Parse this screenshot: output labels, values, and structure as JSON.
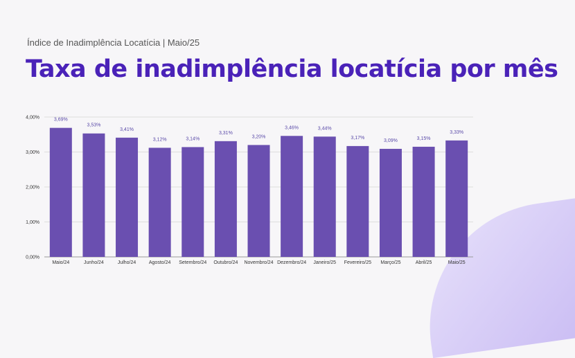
{
  "header": {
    "subtitle": "Índice de Inadimplência Locatícia | Maio/25",
    "title": "Taxa de inadimplência locatícia por mês"
  },
  "colors": {
    "bar": "#6a4fb0",
    "title": "#4a22b8",
    "grid": "#dddddd"
  },
  "chart_data": {
    "type": "bar",
    "categories": [
      "Maio/24",
      "Junho/24",
      "Julho/24",
      "Agosto/24",
      "Setembro/24",
      "Outubro/24",
      "Novembro/24",
      "Dezembro/24",
      "Janeiro/25",
      "Fevereiro/25",
      "Março/25",
      "Abril/25",
      "Maio/25"
    ],
    "values": [
      3.69,
      3.53,
      3.41,
      3.12,
      3.14,
      3.31,
      3.2,
      3.46,
      3.44,
      3.17,
      3.09,
      3.15,
      3.33
    ],
    "data_labels": [
      "3,69%",
      "3,53%",
      "3,41%",
      "3,12%",
      "3,14%",
      "3,31%",
      "3,20%",
      "3,46%",
      "3,44%",
      "3,17%",
      "3,09%",
      "3,15%",
      "3,33%"
    ],
    "yticks": [
      0,
      1,
      2,
      3,
      4
    ],
    "ytick_labels": [
      "0,00%",
      "1,00%",
      "2,00%",
      "3,00%",
      "4,00%"
    ],
    "ylim": [
      0,
      4
    ],
    "grid": true,
    "legend": "none"
  }
}
